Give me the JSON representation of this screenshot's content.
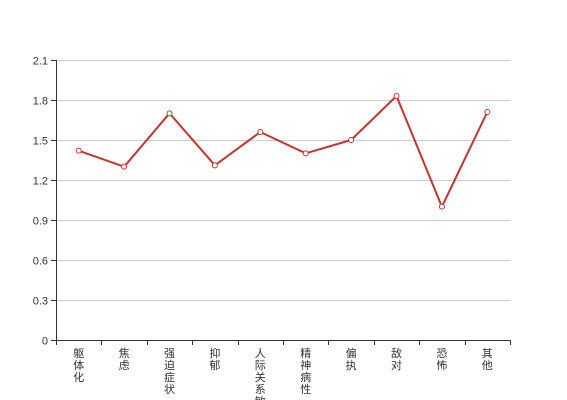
{
  "chart_data": {
    "type": "line",
    "categories": [
      "躯体化",
      "焦虑",
      "强迫症状",
      "抑郁",
      "人际关系敏感",
      "精神病性",
      "偏执",
      "敌对",
      "恐怖",
      "其他"
    ],
    "series": [
      {
        "values": [
          1.42,
          1.3,
          1.7,
          1.31,
          1.56,
          1.4,
          1.5,
          1.83,
          1.0,
          1.71
        ]
      }
    ],
    "ylim": [
      0,
      2.1
    ],
    "yticks": [
      "0",
      "0.3",
      "0.6",
      "0.9",
      "1.2",
      "1.5",
      "1.8",
      "2.1"
    ],
    "grid": true,
    "colors": {
      "line": "#c23531",
      "grid": "#cccccc",
      "axis": "#333333"
    }
  }
}
